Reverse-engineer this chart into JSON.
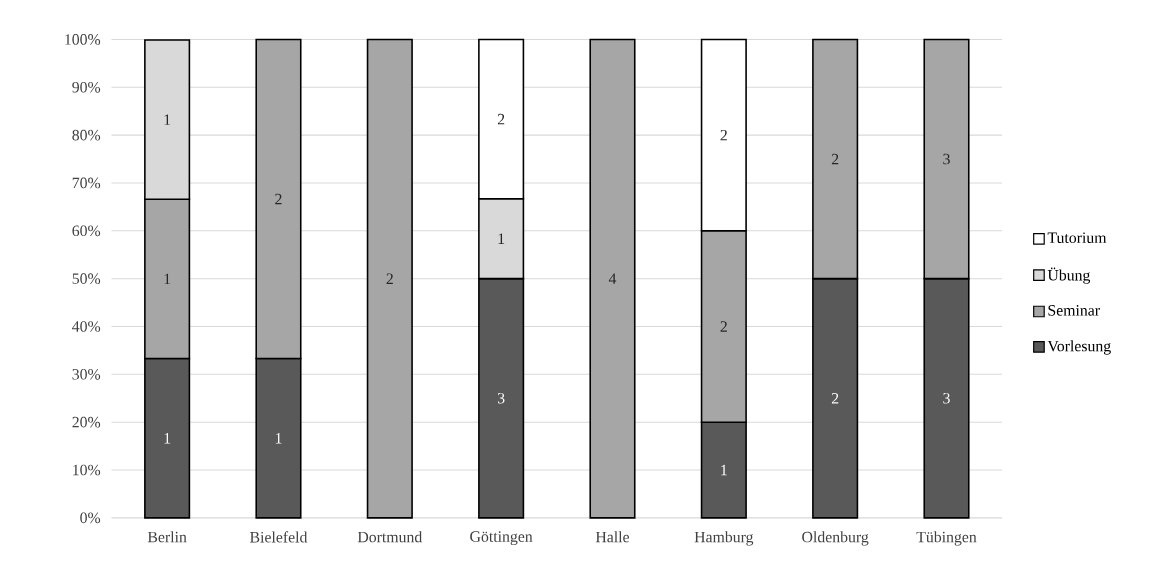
{
  "chart_data": {
    "type": "bar",
    "stacked": true,
    "categories": [
      "Berlin",
      "Bielefeld",
      "Dortmund",
      "Göttingen",
      "Halle",
      "Hamburg",
      "Oldenburg",
      "Tübingen"
    ],
    "series": [
      {
        "name": "Vorlesung",
        "color": "#595959",
        "values": [
          33.3,
          33.3,
          null,
          50,
          null,
          20,
          50,
          50
        ]
      },
      {
        "name": "Seminar",
        "color": "#a6a6a6",
        "values": [
          33.3,
          66.7,
          100,
          null,
          100,
          40,
          50,
          50
        ]
      },
      {
        "name": "Übung",
        "color": "#d9d9d9",
        "values": [
          33.3,
          null,
          null,
          16.7,
          null,
          null,
          null,
          null
        ]
      },
      {
        "name": "Tutorium",
        "color": "#ffffff",
        "values": [
          null,
          null,
          null,
          33.3,
          null,
          40,
          null,
          null
        ]
      }
    ],
    "ylim": [
      0,
      100
    ],
    "yticks": [
      {
        "value": 0,
        "label": "0%"
      },
      {
        "value": 10,
        "label": "10%"
      },
      {
        "value": 20,
        "label": "20%"
      },
      {
        "value": 30,
        "label": "30%"
      },
      {
        "value": 40,
        "label": "40%"
      },
      {
        "value": 50,
        "label": "50%"
      },
      {
        "value": 60,
        "label": "60%"
      },
      {
        "value": 70,
        "label": "70%"
      },
      {
        "value": 80,
        "label": "80%"
      },
      {
        "value": 90,
        "label": "90%"
      },
      {
        "value": 100,
        "label": "100%"
      }
    ],
    "annotations": [
      "1",
      "1",
      "1",
      "1",
      "2",
      "2",
      "3",
      "1",
      "2",
      "4",
      "1",
      "2",
      "2",
      "2",
      "2",
      "3",
      "3"
    ],
    "grid": "y",
    "legend": "right"
  }
}
